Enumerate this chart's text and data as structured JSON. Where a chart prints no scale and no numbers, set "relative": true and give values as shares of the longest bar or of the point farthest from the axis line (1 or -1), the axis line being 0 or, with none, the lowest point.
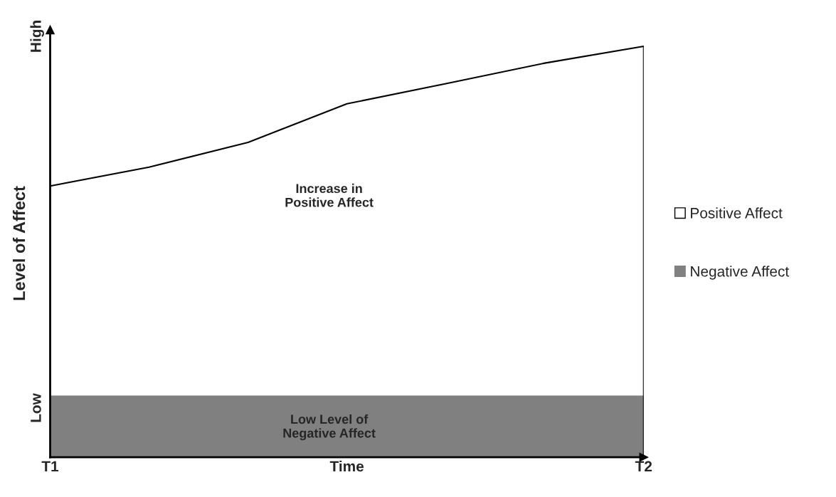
{
  "chart_data": {
    "type": "area",
    "xlabel": "Time",
    "ylabel": "Level of Affect",
    "relative": true,
    "categories": [
      "T1",
      null,
      null,
      null,
      null,
      null,
      "T2"
    ],
    "series": [
      {
        "name": "Positive Affect",
        "type": "line",
        "color": "#000000",
        "values": [
          0.66,
          0.706,
          0.766,
          0.86,
          0.909,
          0.959,
          1
        ]
      },
      {
        "name": "Negative Affect",
        "color": "#808080",
        "values": [
          0.15,
          0.15,
          0.15,
          0.15,
          0.15,
          0.15,
          0.15
        ]
      }
    ],
    "annotations": [
      "Increase in\nPositive Affect",
      "Low Level of\nNegative Affect",
      "Low",
      "High"
    ],
    "legend": "right",
    "grid": false
  }
}
